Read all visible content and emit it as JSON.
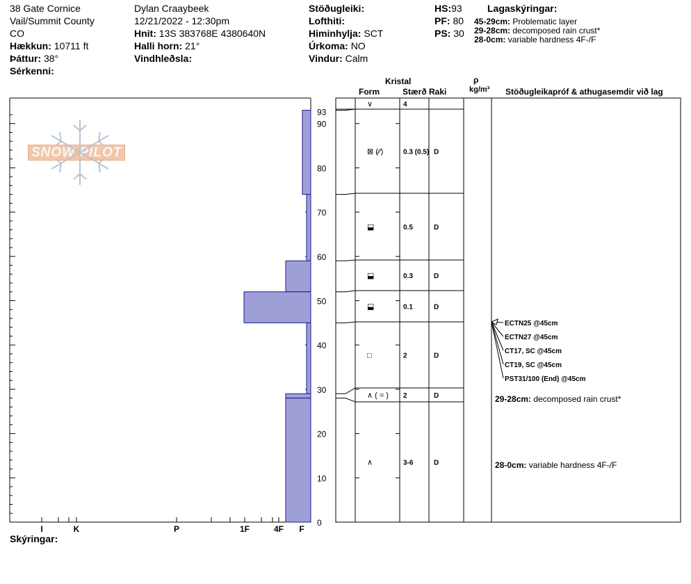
{
  "header": {
    "col1": {
      "location": "38 Gate Cornice",
      "region": "Vail/Summit County",
      "state": "CO",
      "elevation_label": "Hækkun:",
      "elevation_value": "10711 ft",
      "aspect_label": "Þáttur:",
      "aspect_value": "38°",
      "specifics_label": "Sérkenni:"
    },
    "col2": {
      "observer": "Dylan Craaybeek",
      "datetime": "12/21/2022 - 12:30pm",
      "coords_label": "Hnit:",
      "coords_value": "13S 383768E 4380640N",
      "slope_label": "Halli horn:",
      "slope_value": "21°",
      "wind_loading_label": "Vindhleðsla:"
    },
    "col3": {
      "stability_label": "Stöðugleiki:",
      "air_temp_label": "Lofthiti:",
      "sky_label": "Himinhylja:",
      "sky_value": "SCT",
      "precip_label": "Úrkoma:",
      "precip_value": "NO",
      "wind_label": "Vindur:",
      "wind_value": "Calm"
    },
    "col4": {
      "hs_label": "HS:",
      "hs_value": "93",
      "pf_label": "PF:",
      "pf_value": "80",
      "ps_label": "PS:",
      "ps_value": "30"
    },
    "layer_notes": {
      "title": "Lagaskýringar:",
      "items": [
        {
          "range": "45-29cm:",
          "text": "Problematic layer"
        },
        {
          "range": "29-28cm:",
          "text": "decomposed rain crust*"
        },
        {
          "range": "28-0cm:",
          "text": "variable hardness 4F-/F"
        }
      ]
    }
  },
  "logo_text": "SNOW PILOT",
  "hardness_axis": {
    "labels": [
      "I",
      "K",
      "P",
      "1F",
      "4F",
      "F"
    ]
  },
  "depth_axis": {
    "top_label": "93",
    "labels": [
      "90",
      "80",
      "70",
      "60",
      "50",
      "40",
      "30",
      "20",
      "10",
      "0"
    ]
  },
  "remarks_label": "Skýringar:",
  "table_headers": {
    "crystal": "Kristal",
    "form": "Form",
    "size": "Stærð",
    "moisture": "Raki",
    "rho": "ρ",
    "density_unit": "kg/m³",
    "tests": "Stöðugleikapróf & athugasemdir við lag"
  },
  "hardness_profile": [
    {
      "top": 93,
      "bottom": 74,
      "hardness": "F"
    },
    {
      "top": 74,
      "bottom": 59,
      "hardness": "F+"
    },
    {
      "top": 59,
      "bottom": 52,
      "hardness": "4F-"
    },
    {
      "top": 52,
      "bottom": 45,
      "hardness": "1F"
    },
    {
      "top": 45,
      "bottom": 29,
      "hardness": "F+"
    },
    {
      "top": 29,
      "bottom": 28,
      "hardness": "4F-"
    },
    {
      "top": 28,
      "bottom": 0,
      "hardness": "4F-"
    }
  ],
  "layers": [
    {
      "top": 93,
      "bottom": 91,
      "form": "∨",
      "size": "4",
      "moisture": ""
    },
    {
      "top": 91,
      "bottom": 74,
      "form": "⊠ (⁄⁄)",
      "size": "0.3 (0.5)",
      "moisture": "D"
    },
    {
      "top": 74,
      "bottom": 59,
      "form": "⬓",
      "size": "0.5",
      "moisture": "D"
    },
    {
      "top": 59,
      "bottom": 52,
      "form": "⬓",
      "size": "0.3",
      "moisture": "D"
    },
    {
      "top": 52,
      "bottom": 45,
      "form": "⬓",
      "size": "0.1",
      "moisture": "D"
    },
    {
      "top": 45,
      "bottom": 30,
      "form": "□",
      "size": "2",
      "moisture": "D"
    },
    {
      "top": 30,
      "bottom": 27,
      "form": "∧ ( = )",
      "size": "2",
      "moisture": "D"
    },
    {
      "top": 27,
      "bottom": 0,
      "form": "∧",
      "size": "3-6",
      "moisture": "D"
    }
  ],
  "stability_tests": [
    "ECTN25 @45cm",
    "ECTN27 @45cm",
    "CT17, SC @45cm",
    "CT19, SC @45cm",
    "PST31/100 (End) @45cm"
  ],
  "layer_comments": [
    {
      "range": "29-28cm:",
      "text": "decomposed rain crust*"
    },
    {
      "range": "28-0cm:",
      "text": "variable hardness 4F-/F"
    }
  ],
  "colors": {
    "profile_fill": "#9f9fd8",
    "profile_stroke": "#1a1a8c",
    "logo": "#f2c6a8",
    "snowflake": "#b7c4d2"
  }
}
